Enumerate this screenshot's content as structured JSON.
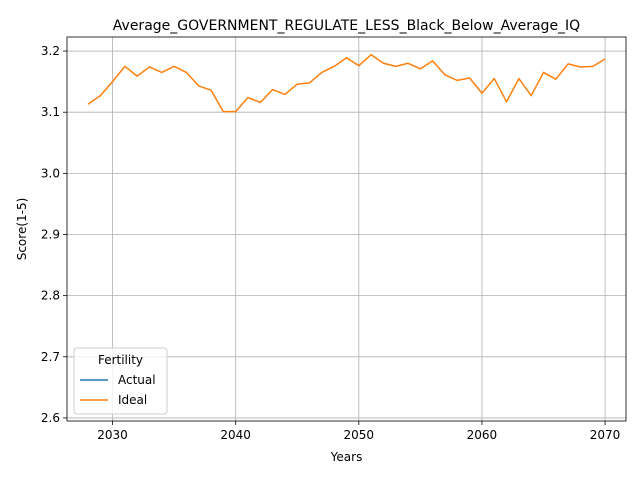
{
  "chart_data": {
    "type": "line",
    "title": "Average_GOVERNMENT_REGULATE_LESS_Black_Below_Average_IQ",
    "xlabel": "Years",
    "ylabel": "Score(1-5)",
    "xlim": [
      2026.3,
      2071.7
    ],
    "ylim": [
      2.595,
      3.223
    ],
    "xticks": [
      2030,
      2040,
      2050,
      2060,
      2070
    ],
    "yticks": [
      2.6,
      2.7,
      2.8,
      2.9,
      3.0,
      3.1,
      3.2
    ],
    "xtick_labels": [
      "2030",
      "2040",
      "2050",
      "2060",
      "2070"
    ],
    "ytick_labels": [
      "2.6",
      "2.7",
      "2.8",
      "2.9",
      "3.0",
      "3.1",
      "3.2"
    ],
    "grid": true,
    "legend": {
      "title": "Fertility",
      "placement": "lower-left",
      "entries": [
        "Actual",
        "Ideal"
      ]
    },
    "series": [
      {
        "name": "Actual",
        "color": "#1f77b4",
        "x": [],
        "values": []
      },
      {
        "name": "Ideal",
        "color": "#ff7f0e",
        "x": [
          2028,
          2029,
          2030,
          2031,
          2032,
          2033,
          2034,
          2035,
          2036,
          2037,
          2038,
          2039,
          2040,
          2041,
          2042,
          2043,
          2044,
          2045,
          2046,
          2047,
          2048,
          2049,
          2050,
          2051,
          2052,
          2053,
          2054,
          2055,
          2056,
          2057,
          2058,
          2059,
          2060,
          2061,
          2062,
          2063,
          2064,
          2065,
          2066,
          2067,
          2068,
          2069,
          2070
        ],
        "values": [
          3.113,
          3.127,
          3.15,
          3.175,
          3.159,
          3.174,
          3.165,
          3.175,
          3.165,
          3.143,
          3.136,
          3.101,
          3.101,
          3.124,
          3.116,
          3.137,
          3.129,
          3.146,
          3.148,
          3.165,
          3.175,
          3.189,
          3.176,
          3.194,
          3.18,
          3.175,
          3.18,
          3.171,
          3.184,
          3.161,
          3.152,
          3.156,
          3.131,
          3.155,
          3.117,
          3.155,
          3.127,
          3.165,
          3.154,
          3.179,
          3.174,
          3.175,
          3.187
        ]
      }
    ]
  }
}
